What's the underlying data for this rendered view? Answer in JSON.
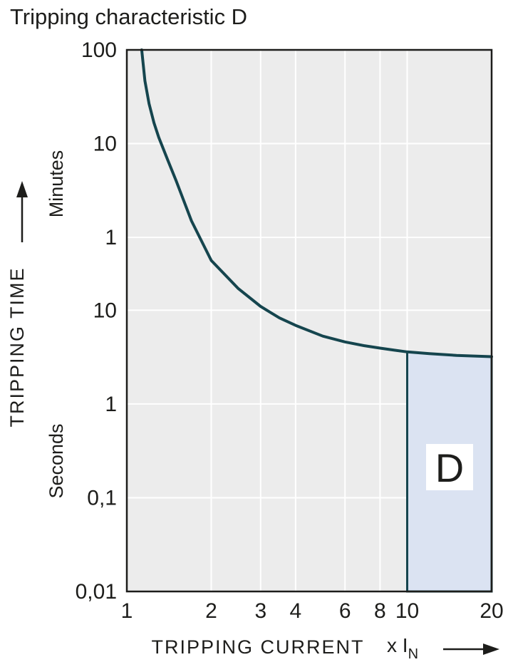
{
  "title": "Tripping characteristic D",
  "region_label": "D",
  "axes": {
    "y_label": "TRIPPING TIME",
    "y_unit_upper": "Minutes",
    "y_unit_lower": "Seconds",
    "x_label": "TRIPPING CURRENT",
    "x_unit_prefix": "x I",
    "x_unit_sub": "N"
  },
  "colors": {
    "curve": "#15454e",
    "region_fill": "#dbe3f2",
    "region_border": "#15454e",
    "plot_background": "#ececec",
    "gridline": "#ffffff",
    "plot_border": "#1d1d1b",
    "text": "#1d1d1b",
    "region_label_box": "#ffffff"
  },
  "chart_data": {
    "type": "line",
    "title": "Tripping characteristic D",
    "x_axis": {
      "label": "TRIPPING CURRENT (x IN)",
      "scale": "log",
      "min": 1,
      "max": 20,
      "ticks": [
        1,
        2,
        3,
        4,
        6,
        8,
        10,
        20
      ],
      "tick_labels": [
        "1",
        "2",
        "3",
        "4",
        "6",
        "8",
        "10",
        "20"
      ]
    },
    "y_axis": {
      "label": "TRIPPING TIME",
      "scale": "log",
      "unit": "seconds",
      "min_seconds": 0.01,
      "max_seconds": 6000,
      "tick_values_seconds": [
        6000,
        600,
        60,
        10,
        1,
        0.1,
        0.01
      ],
      "tick_labels": [
        "100",
        "10",
        "1",
        "10",
        "1",
        "0,1",
        "0,01"
      ],
      "upper_section_unit": "Minutes",
      "lower_section_unit": "Seconds"
    },
    "grid": true,
    "legend": false,
    "series": [
      {
        "name": "Tripping curve D",
        "x": [
          1.13,
          1.16,
          1.2,
          1.25,
          1.3,
          1.4,
          1.5,
          1.7,
          2,
          2.5,
          3,
          3.5,
          4,
          5,
          6,
          7,
          8,
          9,
          10,
          12,
          15,
          20
        ],
        "t_seconds": [
          6000,
          2800,
          1600,
          1000,
          700,
          400,
          240,
          90,
          34,
          17,
          11,
          8.3,
          6.9,
          5.3,
          4.6,
          4.2,
          3.95,
          3.75,
          3.6,
          3.45,
          3.3,
          3.2
        ]
      }
    ],
    "region": {
      "label": "D",
      "x_from": 10,
      "x_to": 20,
      "t_bottom_seconds": 0.01,
      "top_follows_curve": true
    }
  }
}
